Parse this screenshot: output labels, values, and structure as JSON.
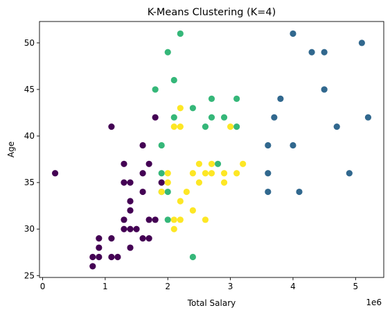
{
  "chart_data": {
    "type": "scatter",
    "title": "K-Means Clustering (K=4)",
    "xlabel": "Total Salary",
    "ylabel": "Age",
    "x_scale_label": "1e6",
    "xlim": [
      -0.05,
      5.45
    ],
    "ylim": [
      24.8,
      52.3
    ],
    "x_unit_multiplier": 1000000,
    "x_ticks": [
      0,
      1,
      2,
      3,
      4,
      5
    ],
    "y_ticks": [
      25,
      30,
      35,
      40,
      45,
      50
    ],
    "grid": false,
    "legend": "none",
    "cluster_colors": [
      "#440154",
      "#31688e",
      "#35b779",
      "#fde725"
    ],
    "clusters": [
      {
        "cluster": 0,
        "color": "#440154",
        "points": [
          [
            0.2,
            36
          ],
          [
            0.8,
            26
          ],
          [
            0.8,
            27
          ],
          [
            0.9,
            27
          ],
          [
            0.9,
            28
          ],
          [
            0.9,
            29
          ],
          [
            1.1,
            27
          ],
          [
            1.1,
            29
          ],
          [
            1.1,
            41
          ],
          [
            1.2,
            27
          ],
          [
            1.3,
            30
          ],
          [
            1.3,
            31
          ],
          [
            1.3,
            35
          ],
          [
            1.3,
            37
          ],
          [
            1.4,
            28
          ],
          [
            1.4,
            30
          ],
          [
            1.4,
            32
          ],
          [
            1.4,
            33
          ],
          [
            1.4,
            35
          ],
          [
            1.5,
            30
          ],
          [
            1.6,
            29
          ],
          [
            1.6,
            34
          ],
          [
            1.6,
            36
          ],
          [
            1.6,
            39
          ],
          [
            1.7,
            29
          ],
          [
            1.7,
            31
          ],
          [
            1.7,
            37
          ],
          [
            1.8,
            31
          ],
          [
            1.8,
            42
          ],
          [
            1.9,
            35
          ]
        ]
      },
      {
        "cluster": 1,
        "color": "#31688e",
        "points": [
          [
            3.6,
            34
          ],
          [
            3.6,
            36
          ],
          [
            3.6,
            39
          ],
          [
            3.7,
            42
          ],
          [
            3.8,
            44
          ],
          [
            4.0,
            39
          ],
          [
            4.0,
            51
          ],
          [
            4.1,
            34
          ],
          [
            4.3,
            49
          ],
          [
            4.5,
            45
          ],
          [
            4.5,
            49
          ],
          [
            4.7,
            41
          ],
          [
            4.9,
            36
          ],
          [
            5.1,
            50
          ],
          [
            5.2,
            42
          ]
        ]
      },
      {
        "cluster": 2,
        "color": "#35b779",
        "points": [
          [
            1.8,
            45
          ],
          [
            1.9,
            34
          ],
          [
            1.9,
            36
          ],
          [
            1.9,
            39
          ],
          [
            2.0,
            31
          ],
          [
            2.0,
            34
          ],
          [
            2.0,
            49
          ],
          [
            2.1,
            42
          ],
          [
            2.1,
            46
          ],
          [
            2.2,
            51
          ],
          [
            2.4,
            27
          ],
          [
            2.4,
            43
          ],
          [
            2.6,
            41
          ],
          [
            2.7,
            42
          ],
          [
            2.7,
            44
          ],
          [
            2.8,
            37
          ],
          [
            2.9,
            42
          ],
          [
            3.1,
            41
          ],
          [
            3.1,
            44
          ]
        ]
      },
      {
        "cluster": 3,
        "color": "#fde725",
        "points": [
          [
            1.9,
            34
          ],
          [
            2.0,
            35
          ],
          [
            2.0,
            36
          ],
          [
            2.1,
            30
          ],
          [
            2.1,
            31
          ],
          [
            2.1,
            41
          ],
          [
            2.2,
            31
          ],
          [
            2.2,
            33
          ],
          [
            2.2,
            41
          ],
          [
            2.2,
            43
          ],
          [
            2.3,
            34
          ],
          [
            2.4,
            32
          ],
          [
            2.4,
            36
          ],
          [
            2.5,
            35
          ],
          [
            2.5,
            37
          ],
          [
            2.6,
            31
          ],
          [
            2.6,
            36
          ],
          [
            2.7,
            36
          ],
          [
            2.7,
            37
          ],
          [
            2.9,
            35
          ],
          [
            2.9,
            36
          ],
          [
            3.0,
            41
          ],
          [
            3.1,
            36
          ],
          [
            3.2,
            37
          ]
        ]
      }
    ]
  }
}
